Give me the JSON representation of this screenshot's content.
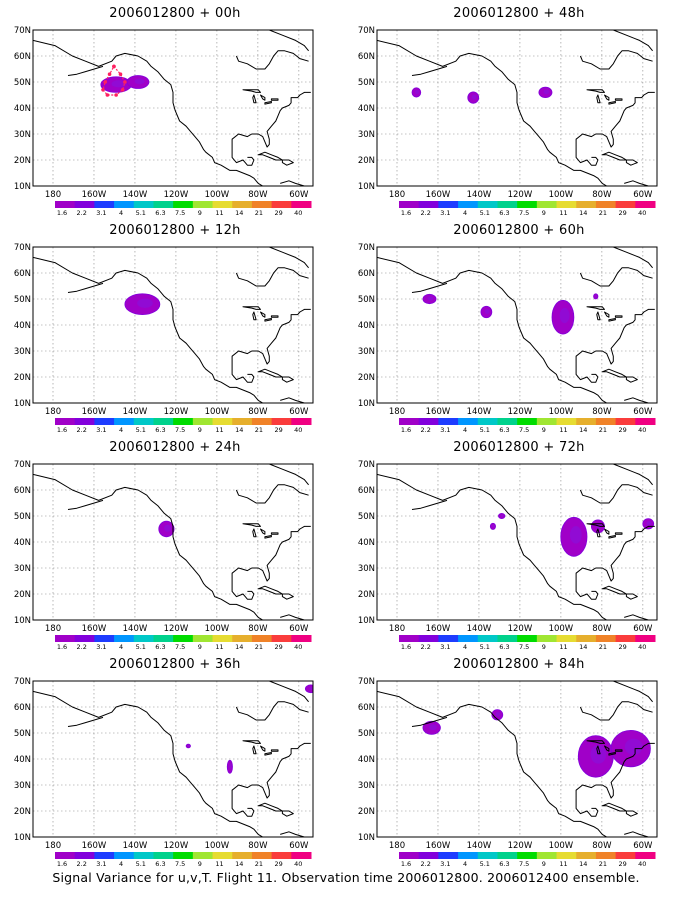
{
  "figure": {
    "caption": "Signal Variance for u,v,T. Flight 11. Observation time 2006012800. 2006012400 ensemble.",
    "lat_labels": [
      "70N",
      "60N",
      "50N",
      "40N",
      "30N",
      "20N",
      "10N"
    ],
    "lon_labels": [
      "180",
      "160W",
      "140W",
      "120W",
      "100W",
      "80W",
      "60W"
    ],
    "colorbar": {
      "labels": [
        "1.6",
        "2.2",
        "3.1",
        "4",
        "5.1",
        "6.3",
        "7.5",
        "9",
        "11",
        "14",
        "21",
        "29",
        "40"
      ],
      "colors": [
        "#a000c8",
        "#8200dc",
        "#1e3cff",
        "#0096ff",
        "#00c8c8",
        "#00d28c",
        "#00dc00",
        "#a0e632",
        "#e6dc32",
        "#e6af2d",
        "#f08228",
        "#fa3c3c",
        "#f00082"
      ]
    },
    "panels": [
      {
        "id": "00h",
        "title": "2006012800 + 00h",
        "note": "pink track overlay"
      },
      {
        "id": "48h",
        "title": "2006012800 + 48h"
      },
      {
        "id": "12h",
        "title": "2006012800 + 12h"
      },
      {
        "id": "60h",
        "title": "2006012800 + 60h"
      },
      {
        "id": "24h",
        "title": "2006012800 + 24h"
      },
      {
        "id": "72h",
        "title": "2006012800 + 72h"
      },
      {
        "id": "36h",
        "title": "2006012800 + 36h"
      },
      {
        "id": "84h",
        "title": "2006012800 + 84h"
      }
    ]
  }
}
